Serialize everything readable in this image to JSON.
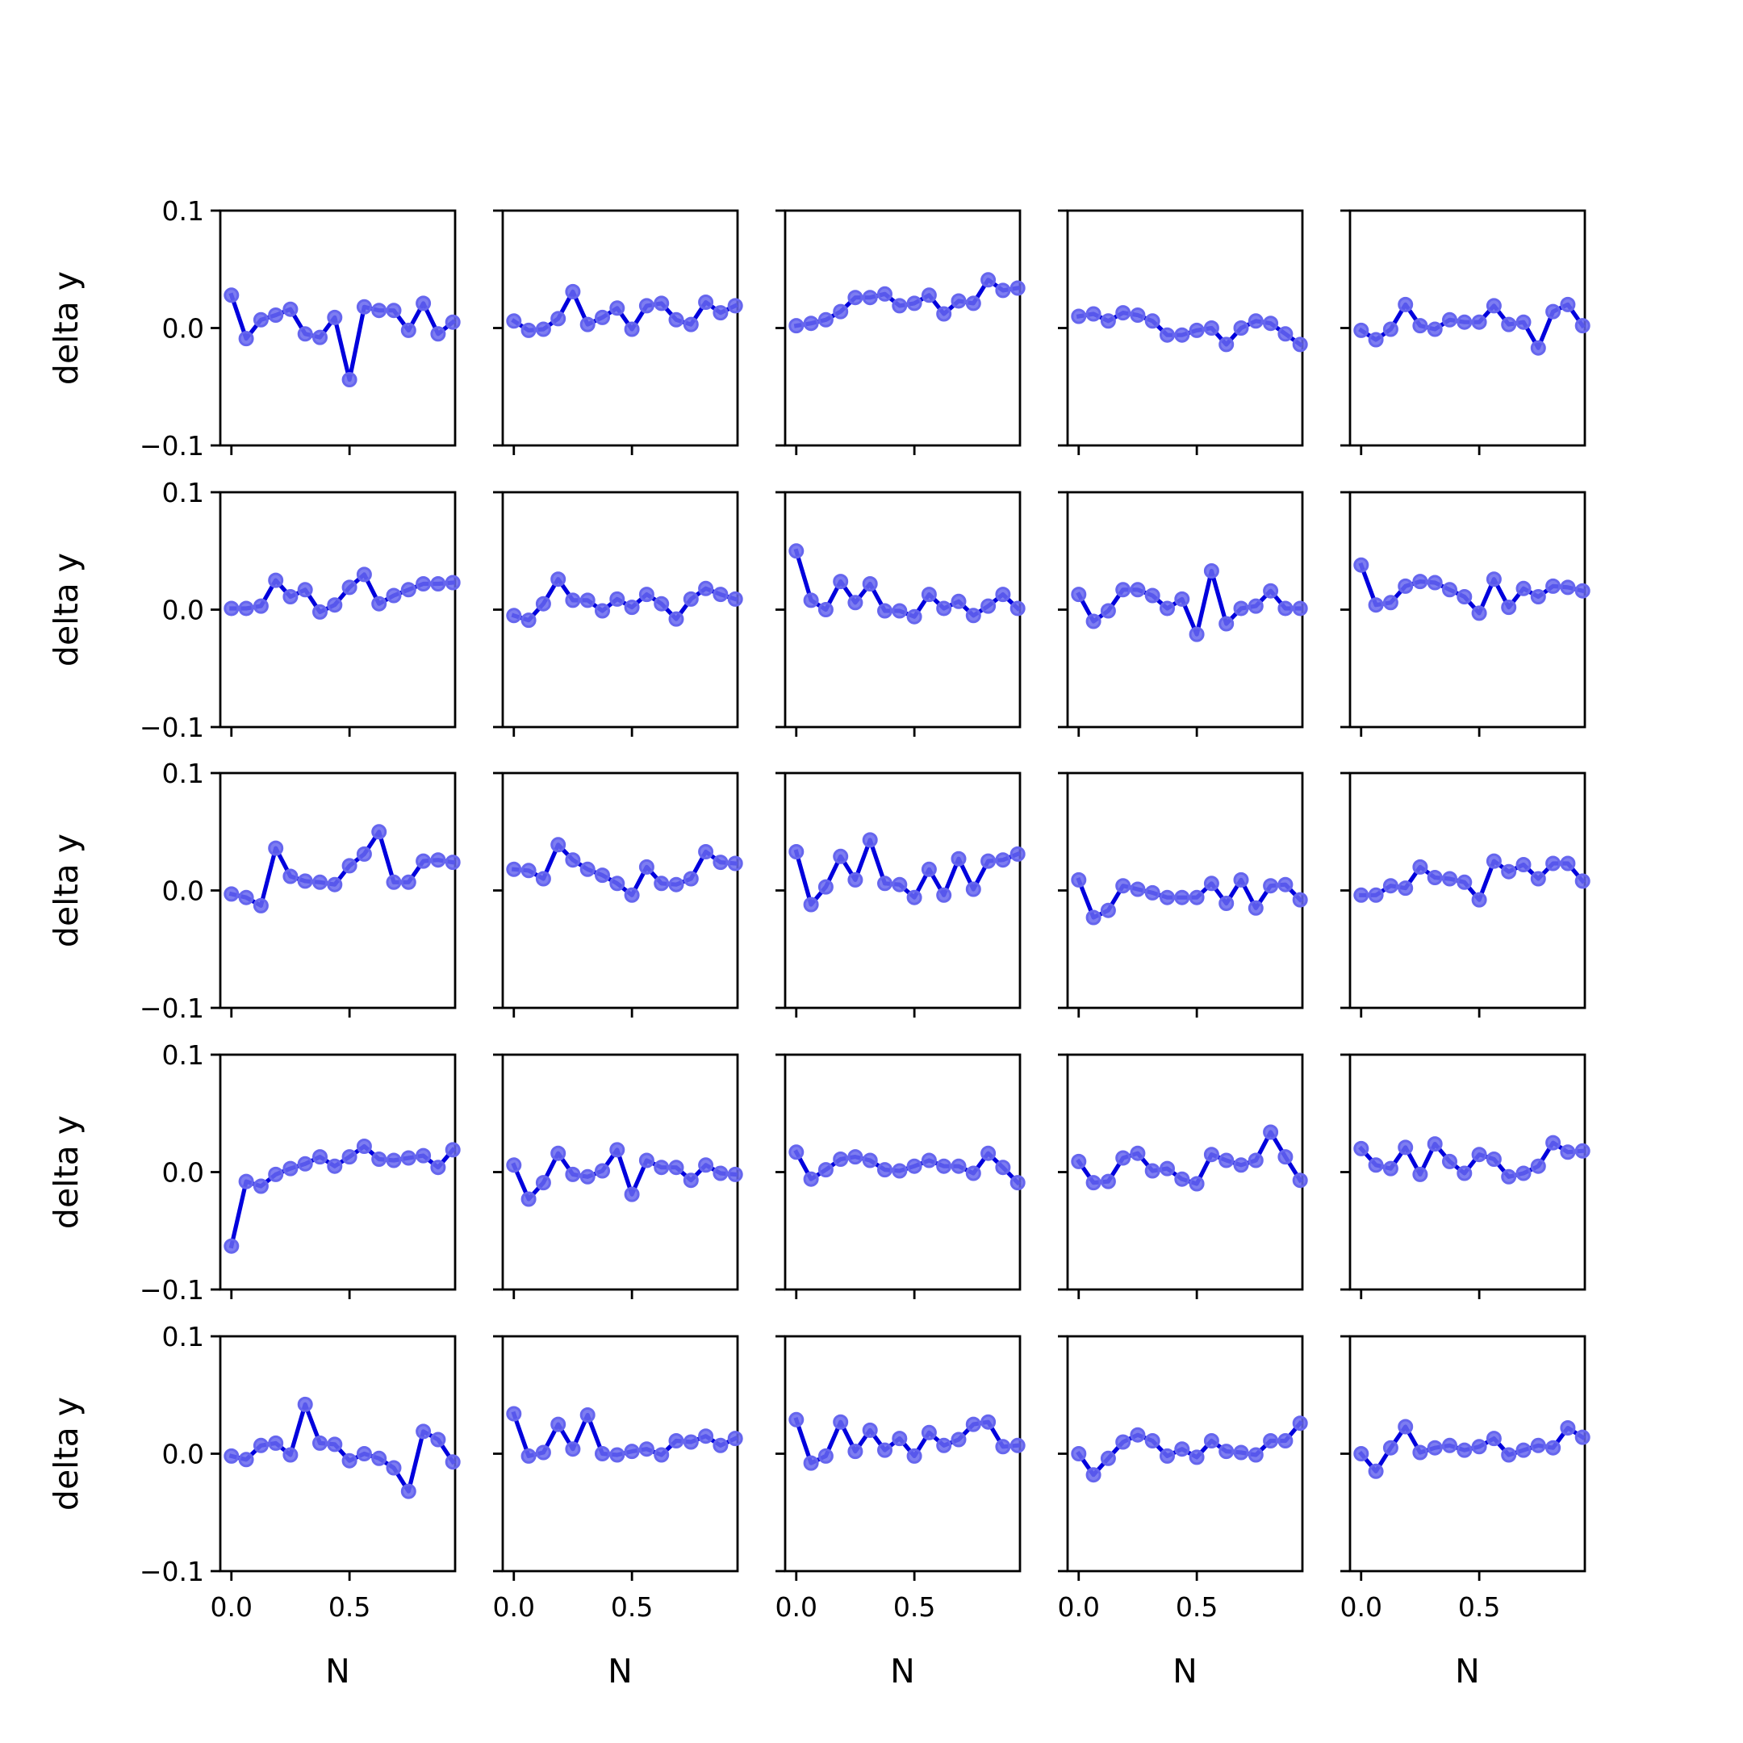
{
  "figure": {
    "background": "#ffffff"
  },
  "chart_data": {
    "type": "line",
    "layout": {
      "rows": 5,
      "cols": 5
    },
    "xlabel": "N",
    "ylabel": "delta y",
    "xlim": [
      -0.047,
      0.947
    ],
    "ylim": [
      -0.1,
      0.1
    ],
    "x_ticks": [
      0.0,
      0.5
    ],
    "x_tick_labels": [
      "0.0",
      "0.5"
    ],
    "y_ticks": [
      -0.1,
      0.0,
      0.1
    ],
    "y_tick_labels": [
      "−0.1",
      "0.0",
      "0.1"
    ],
    "grid": false,
    "legend": "none",
    "colors": {
      "line": "#0000dd",
      "marker": "#6666ee"
    },
    "x": [
      0.0,
      0.0625,
      0.125,
      0.1875,
      0.25,
      0.3125,
      0.375,
      0.4375,
      0.5,
      0.5625,
      0.625,
      0.6875,
      0.75,
      0.8125,
      0.875,
      0.9375
    ],
    "panels": [
      {
        "row": 1,
        "col": 1,
        "values": [
          0.028,
          -0.009,
          0.007,
          0.011,
          0.016,
          -0.005,
          -0.008,
          0.009,
          -0.044,
          0.018,
          0.015,
          0.015,
          -0.002,
          0.021,
          -0.005,
          0.005
        ]
      },
      {
        "row": 1,
        "col": 2,
        "values": [
          0.006,
          -0.002,
          -0.001,
          0.008,
          0.031,
          0.003,
          0.009,
          0.017,
          -0.001,
          0.019,
          0.021,
          0.007,
          0.003,
          0.022,
          0.013,
          0.019
        ]
      },
      {
        "row": 1,
        "col": 3,
        "values": [
          0.002,
          0.004,
          0.007,
          0.014,
          0.026,
          0.026,
          0.029,
          0.019,
          0.021,
          0.028,
          0.012,
          0.023,
          0.021,
          0.041,
          0.032,
          0.034
        ]
      },
      {
        "row": 1,
        "col": 4,
        "values": [
          0.01,
          0.012,
          0.006,
          0.013,
          0.011,
          0.006,
          -0.006,
          -0.006,
          -0.002,
          0.0,
          -0.014,
          0.0,
          0.006,
          0.004,
          -0.005,
          -0.014
        ]
      },
      {
        "row": 1,
        "col": 5,
        "values": [
          -0.002,
          -0.01,
          -0.001,
          0.02,
          0.002,
          -0.001,
          0.007,
          0.005,
          0.005,
          0.019,
          0.003,
          0.005,
          -0.017,
          0.014,
          0.02,
          0.002
        ]
      },
      {
        "row": 2,
        "col": 1,
        "values": [
          0.001,
          0.001,
          0.003,
          0.025,
          0.011,
          0.017,
          -0.002,
          0.004,
          0.019,
          0.03,
          0.005,
          0.012,
          0.017,
          0.022,
          0.022,
          0.023
        ]
      },
      {
        "row": 2,
        "col": 2,
        "values": [
          -0.005,
          -0.009,
          0.005,
          0.026,
          0.008,
          0.008,
          -0.001,
          0.009,
          0.002,
          0.013,
          0.005,
          -0.008,
          0.009,
          0.018,
          0.013,
          0.009
        ]
      },
      {
        "row": 2,
        "col": 3,
        "values": [
          0.05,
          0.008,
          0.0,
          0.024,
          0.006,
          0.022,
          -0.001,
          -0.001,
          -0.006,
          0.013,
          0.001,
          0.007,
          -0.005,
          0.003,
          0.013,
          0.001
        ]
      },
      {
        "row": 2,
        "col": 4,
        "values": [
          0.013,
          -0.01,
          -0.001,
          0.017,
          0.017,
          0.012,
          0.001,
          0.009,
          -0.021,
          0.033,
          -0.012,
          0.001,
          0.003,
          0.016,
          0.001,
          0.001
        ]
      },
      {
        "row": 2,
        "col": 5,
        "values": [
          0.038,
          0.004,
          0.006,
          0.02,
          0.024,
          0.023,
          0.017,
          0.011,
          -0.003,
          0.026,
          0.002,
          0.018,
          0.011,
          0.02,
          0.019,
          0.016
        ]
      },
      {
        "row": 3,
        "col": 1,
        "values": [
          -0.003,
          -0.006,
          -0.013,
          0.036,
          0.012,
          0.008,
          0.007,
          0.005,
          0.021,
          0.031,
          0.05,
          0.007,
          0.007,
          0.025,
          0.026,
          0.024
        ]
      },
      {
        "row": 3,
        "col": 2,
        "values": [
          0.018,
          0.017,
          0.01,
          0.039,
          0.026,
          0.018,
          0.013,
          0.006,
          -0.004,
          0.02,
          0.006,
          0.005,
          0.01,
          0.033,
          0.024,
          0.023
        ]
      },
      {
        "row": 3,
        "col": 3,
        "values": [
          0.033,
          -0.012,
          0.003,
          0.029,
          0.009,
          0.043,
          0.006,
          0.005,
          -0.006,
          0.018,
          -0.004,
          0.027,
          0.001,
          0.025,
          0.026,
          0.031
        ]
      },
      {
        "row": 3,
        "col": 4,
        "values": [
          0.009,
          -0.023,
          -0.017,
          0.004,
          0.001,
          -0.002,
          -0.006,
          -0.006,
          -0.006,
          0.006,
          -0.011,
          0.009,
          -0.015,
          0.004,
          0.005,
          -0.008
        ]
      },
      {
        "row": 3,
        "col": 5,
        "values": [
          -0.004,
          -0.004,
          0.004,
          0.002,
          0.02,
          0.011,
          0.01,
          0.007,
          -0.008,
          0.025,
          0.016,
          0.022,
          0.01,
          0.023,
          0.023,
          0.008
        ]
      },
      {
        "row": 4,
        "col": 1,
        "values": [
          -0.063,
          -0.008,
          -0.012,
          -0.002,
          0.003,
          0.007,
          0.013,
          0.005,
          0.013,
          0.022,
          0.011,
          0.01,
          0.012,
          0.014,
          0.004,
          0.019
        ]
      },
      {
        "row": 4,
        "col": 2,
        "values": [
          0.006,
          -0.023,
          -0.009,
          0.016,
          -0.002,
          -0.004,
          0.001,
          0.019,
          -0.019,
          0.01,
          0.004,
          0.004,
          -0.007,
          0.006,
          -0.001,
          -0.002
        ]
      },
      {
        "row": 4,
        "col": 3,
        "values": [
          0.017,
          -0.006,
          0.002,
          0.011,
          0.013,
          0.01,
          0.002,
          0.001,
          0.005,
          0.01,
          0.005,
          0.005,
          -0.001,
          0.016,
          0.004,
          -0.009
        ]
      },
      {
        "row": 4,
        "col": 4,
        "values": [
          0.009,
          -0.009,
          -0.008,
          0.012,
          0.016,
          0.001,
          0.003,
          -0.006,
          -0.01,
          0.015,
          0.01,
          0.006,
          0.01,
          0.034,
          0.013,
          -0.007
        ]
      },
      {
        "row": 4,
        "col": 5,
        "values": [
          0.02,
          0.006,
          0.003,
          0.021,
          -0.002,
          0.024,
          0.009,
          -0.001,
          0.015,
          0.011,
          -0.004,
          -0.001,
          0.005,
          0.025,
          0.017,
          0.018
        ]
      },
      {
        "row": 5,
        "col": 1,
        "values": [
          -0.002,
          -0.005,
          0.007,
          0.009,
          -0.001,
          0.042,
          0.009,
          0.008,
          -0.006,
          0.0,
          -0.004,
          -0.012,
          -0.032,
          0.019,
          0.012,
          -0.007
        ]
      },
      {
        "row": 5,
        "col": 2,
        "values": [
          0.034,
          -0.002,
          0.001,
          0.025,
          0.004,
          0.033,
          0.0,
          -0.001,
          0.002,
          0.004,
          -0.001,
          0.011,
          0.01,
          0.015,
          0.007,
          0.013
        ]
      },
      {
        "row": 5,
        "col": 3,
        "values": [
          0.029,
          -0.008,
          -0.002,
          0.027,
          0.002,
          0.02,
          0.003,
          0.013,
          -0.002,
          0.018,
          0.007,
          0.012,
          0.025,
          0.027,
          0.006,
          0.007
        ]
      },
      {
        "row": 5,
        "col": 4,
        "values": [
          0.0,
          -0.018,
          -0.004,
          0.01,
          0.016,
          0.011,
          -0.002,
          0.004,
          -0.003,
          0.011,
          0.002,
          0.001,
          -0.001,
          0.011,
          0.011,
          0.026
        ]
      },
      {
        "row": 5,
        "col": 5,
        "values": [
          0.0,
          -0.015,
          0.005,
          0.023,
          0.001,
          0.005,
          0.007,
          0.003,
          0.006,
          0.013,
          -0.001,
          0.003,
          0.007,
          0.005,
          0.022,
          0.014
        ]
      }
    ]
  }
}
